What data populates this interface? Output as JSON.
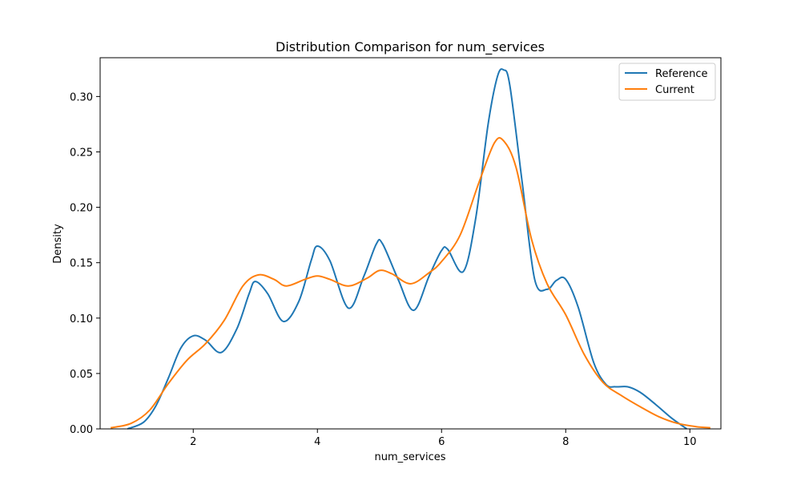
{
  "chart_data": {
    "type": "line",
    "title": "Distribution Comparison for num_services",
    "xlabel": "num_services",
    "ylabel": "Density",
    "xlim": [
      0.5,
      10.5
    ],
    "ylim": [
      0,
      0.335
    ],
    "xticks": [
      2,
      4,
      6,
      8,
      10
    ],
    "yticks": [
      0.0,
      0.05,
      0.1,
      0.15,
      0.2,
      0.25,
      0.3
    ],
    "ytick_labels": [
      "0.00",
      "0.05",
      "0.10",
      "0.15",
      "0.20",
      "0.25",
      "0.30"
    ],
    "grid": false,
    "legend_position": "top-right",
    "series": [
      {
        "name": "Reference",
        "color": "#1f77b4",
        "x": [
          0.94,
          1.2,
          1.4,
          1.6,
          1.8,
          2.0,
          2.2,
          2.45,
          2.7,
          2.9,
          3.0,
          3.2,
          3.45,
          3.7,
          3.9,
          4.0,
          4.2,
          4.5,
          4.75,
          4.95,
          5.05,
          5.3,
          5.55,
          5.8,
          6.0,
          6.1,
          6.35,
          6.55,
          6.75,
          6.9,
          7.0,
          7.1,
          7.3,
          7.5,
          7.7,
          7.85,
          8.0,
          8.2,
          8.45,
          8.65,
          8.8,
          9.0,
          9.2,
          9.45,
          9.7,
          9.95
        ],
        "y": [
          0.0,
          0.006,
          0.021,
          0.046,
          0.073,
          0.084,
          0.08,
          0.069,
          0.09,
          0.122,
          0.133,
          0.122,
          0.097,
          0.115,
          0.152,
          0.165,
          0.152,
          0.109,
          0.138,
          0.167,
          0.167,
          0.135,
          0.107,
          0.138,
          0.161,
          0.162,
          0.142,
          0.19,
          0.275,
          0.318,
          0.324,
          0.31,
          0.222,
          0.135,
          0.126,
          0.134,
          0.135,
          0.11,
          0.06,
          0.04,
          0.038,
          0.038,
          0.033,
          0.022,
          0.01,
          0.0
        ]
      },
      {
        "name": "Current",
        "color": "#ff7f0e",
        "x": [
          0.67,
          1.0,
          1.3,
          1.6,
          1.9,
          2.2,
          2.5,
          2.8,
          3.05,
          3.3,
          3.5,
          3.8,
          4.0,
          4.2,
          4.5,
          4.8,
          5.0,
          5.2,
          5.5,
          5.8,
          6.0,
          6.3,
          6.6,
          6.85,
          7.0,
          7.2,
          7.45,
          7.7,
          8.0,
          8.3,
          8.6,
          8.9,
          9.2,
          9.5,
          9.8,
          10.1,
          10.33
        ],
        "y": [
          0.001,
          0.005,
          0.017,
          0.041,
          0.062,
          0.077,
          0.098,
          0.129,
          0.139,
          0.135,
          0.129,
          0.135,
          0.138,
          0.135,
          0.129,
          0.136,
          0.143,
          0.14,
          0.131,
          0.141,
          0.151,
          0.175,
          0.222,
          0.258,
          0.26,
          0.236,
          0.171,
          0.131,
          0.103,
          0.067,
          0.042,
          0.03,
          0.02,
          0.011,
          0.005,
          0.002,
          0.001
        ]
      }
    ]
  }
}
